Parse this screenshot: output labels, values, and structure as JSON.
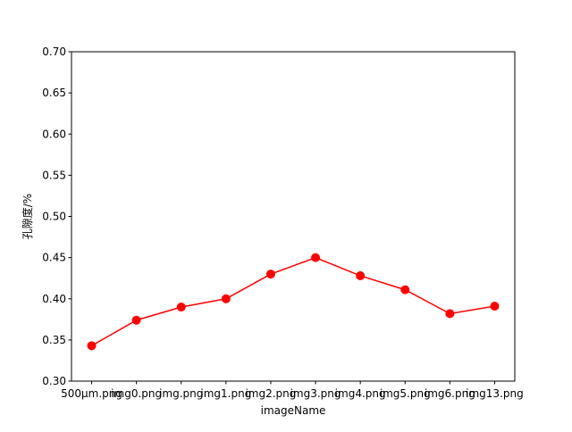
{
  "chart_data": {
    "type": "line",
    "title": "",
    "xlabel": "imageName",
    "ylabel": "孔隙度/%",
    "categories": [
      "500μm.png",
      "img0.png",
      "img.png",
      "img1.png",
      "img2.png",
      "img3.png",
      "img4.png",
      "img5.png",
      "img6.png",
      "img13.png"
    ],
    "series": [
      {
        "values": [
          0.343,
          0.374,
          0.39,
          0.4,
          0.43,
          0.45,
          0.428,
          0.411,
          0.382,
          0.391
        ],
        "color": "#ff0000",
        "marker": "circle"
      }
    ],
    "ylim": [
      0.3,
      0.7
    ],
    "yticks": [
      "0.30",
      "0.35",
      "0.40",
      "0.45",
      "0.50",
      "0.55",
      "0.60",
      "0.65",
      "0.70"
    ],
    "grid": false,
    "legend": "none"
  }
}
